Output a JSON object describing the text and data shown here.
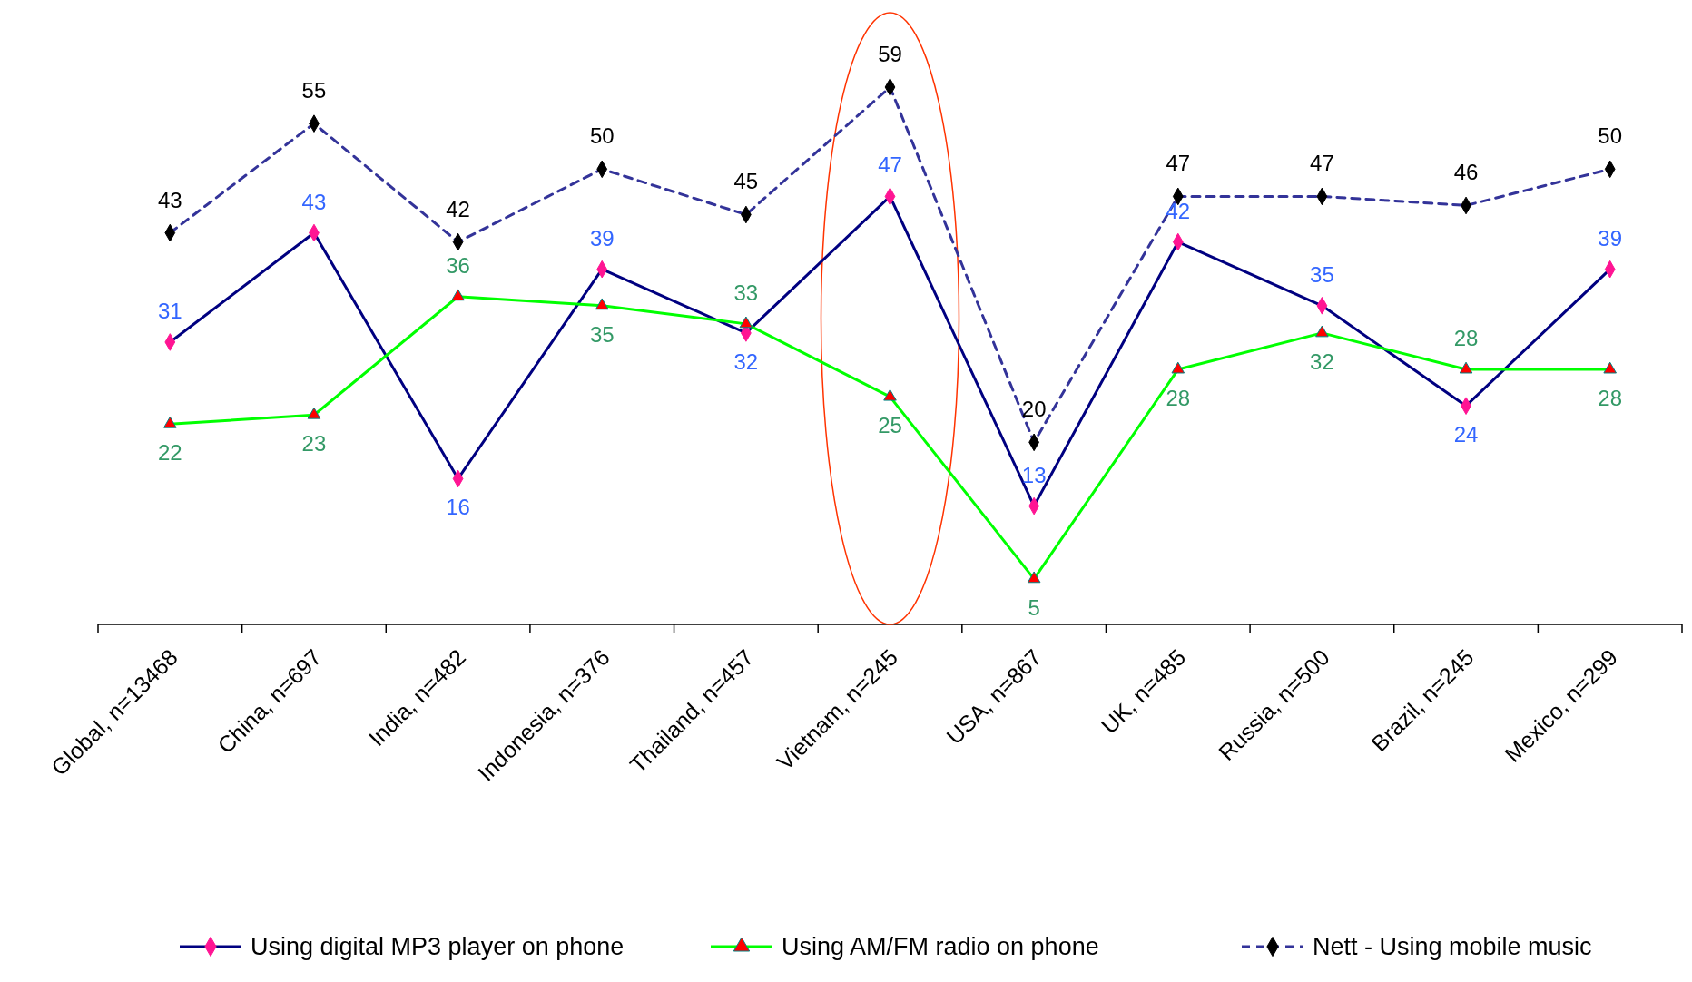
{
  "chart_data": {
    "type": "line",
    "categories": [
      "Global, n=13468",
      "China, n=697",
      "India, n=482",
      "Indonesia, n=376",
      "Thailand, n=457",
      "Vietnam, n=245",
      "USA, n=867",
      "UK, n=485",
      "Russia, n=500",
      "Brazil, n=245",
      "Mexico, n=299"
    ],
    "series": [
      {
        "name": "Using digital MP3 player on phone",
        "color": "#000080",
        "marker": "diamond",
        "line_style": "solid",
        "values": [
          31,
          43,
          16,
          39,
          32,
          47,
          13,
          42,
          35,
          24,
          39
        ]
      },
      {
        "name": "Using AM/FM radio on phone",
        "color": "#00ff00",
        "marker": "triangle",
        "line_style": "solid",
        "values": [
          22,
          23,
          36,
          35,
          33,
          25,
          5,
          28,
          32,
          28,
          28
        ]
      },
      {
        "name": "Nett - Using mobile music",
        "color": "#333399",
        "marker": "diamond",
        "line_style": "dashed",
        "values": [
          43,
          55,
          42,
          50,
          45,
          59,
          20,
          47,
          47,
          46,
          50
        ]
      }
    ],
    "data_labels": true,
    "legend": "bottom"
  }
}
